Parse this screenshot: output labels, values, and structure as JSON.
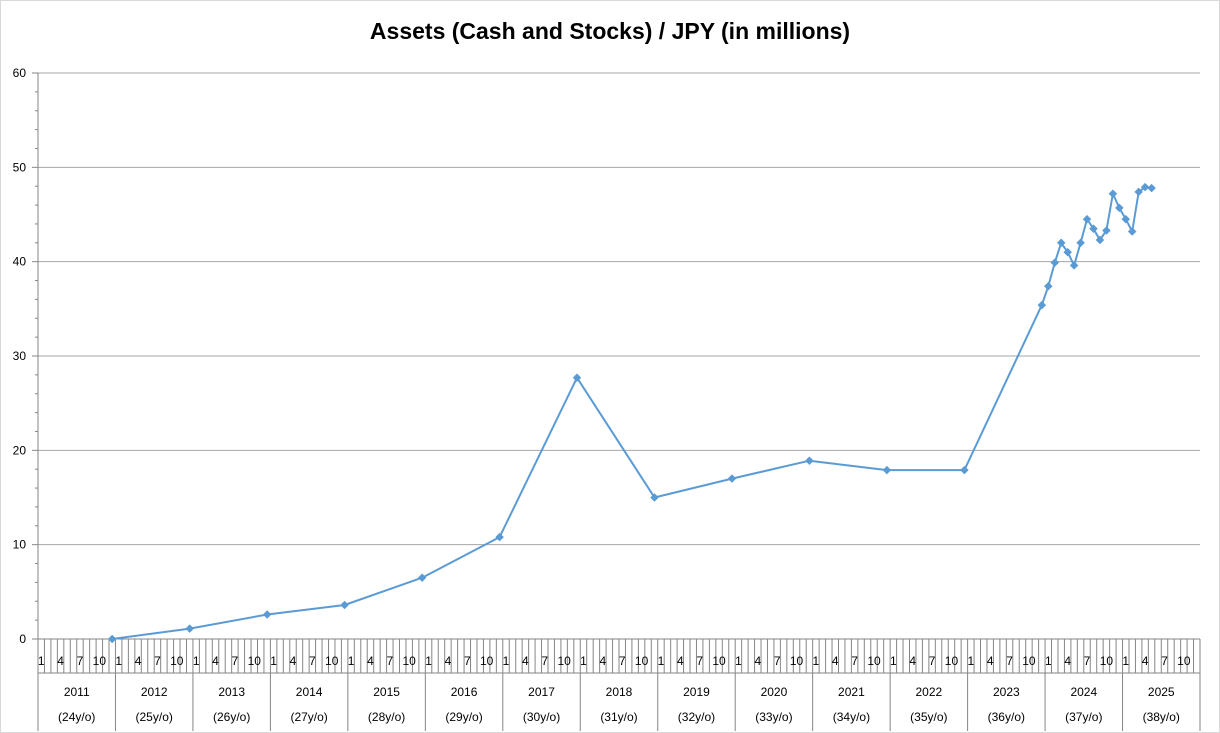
{
  "chart_data": {
    "type": "line",
    "title": "Assets (Cash and Stocks) / JPY (in millions)",
    "xlabel": "",
    "ylabel": "",
    "ylim": [
      0,
      60
    ],
    "y_ticks": [
      0,
      10,
      20,
      30,
      40,
      50,
      60
    ],
    "grid": true,
    "legend": "none",
    "x_axis": {
      "month_ticks": [
        "1",
        "4",
        "7",
        "10"
      ],
      "years": [
        {
          "year": "2011",
          "age": "(24y/o)"
        },
        {
          "year": "2012",
          "age": "(25y/o)"
        },
        {
          "year": "2013",
          "age": "(26y/o)"
        },
        {
          "year": "2014",
          "age": "(27y/o)"
        },
        {
          "year": "2015",
          "age": "(28y/o)"
        },
        {
          "year": "2016",
          "age": "(29y/o)"
        },
        {
          "year": "2017",
          "age": "(30y/o)"
        },
        {
          "year": "2018",
          "age": "(31y/o)"
        },
        {
          "year": "2019",
          "age": "(32y/o)"
        },
        {
          "year": "2020",
          "age": "(33y/o)"
        },
        {
          "year": "2021",
          "age": "(34y/o)"
        },
        {
          "year": "2022",
          "age": "(35y/o)"
        },
        {
          "year": "2023",
          "age": "(36y/o)"
        },
        {
          "year": "2024",
          "age": "(37y/o)"
        },
        {
          "year": "2025",
          "age": "(38y/o)"
        }
      ]
    },
    "series": [
      {
        "color": "#5b9bd5",
        "points": [
          {
            "x": "2011-12",
            "y": 0
          },
          {
            "x": "2012-12",
            "y": 1.1
          },
          {
            "x": "2013-12",
            "y": 2.6
          },
          {
            "x": "2014-12",
            "y": 3.6
          },
          {
            "x": "2015-12",
            "y": 6.5
          },
          {
            "x": "2016-12",
            "y": 10.8
          },
          {
            "x": "2017-12",
            "y": 27.7
          },
          {
            "x": "2018-12",
            "y": 15.0
          },
          {
            "x": "2019-12",
            "y": 17.0
          },
          {
            "x": "2020-12",
            "y": 18.9
          },
          {
            "x": "2021-12",
            "y": 17.9
          },
          {
            "x": "2022-12",
            "y": 17.9
          },
          {
            "x": "2023-12",
            "y": 35.4
          },
          {
            "x": "2024-01",
            "y": 37.4
          },
          {
            "x": "2024-02",
            "y": 39.9
          },
          {
            "x": "2024-03",
            "y": 42.0
          },
          {
            "x": "2024-04",
            "y": 41.0
          },
          {
            "x": "2024-05",
            "y": 39.6
          },
          {
            "x": "2024-06",
            "y": 42.0
          },
          {
            "x": "2024-07",
            "y": 44.5
          },
          {
            "x": "2024-08",
            "y": 43.5
          },
          {
            "x": "2024-09",
            "y": 42.3
          },
          {
            "x": "2024-10",
            "y": 43.3
          },
          {
            "x": "2024-11",
            "y": 47.2
          },
          {
            "x": "2024-12",
            "y": 45.7
          },
          {
            "x": "2025-01",
            "y": 44.5
          },
          {
            "x": "2025-02",
            "y": 43.2
          },
          {
            "x": "2025-03",
            "y": 47.4
          },
          {
            "x": "2025-04",
            "y": 47.9
          },
          {
            "x": "2025-05",
            "y": 47.8
          }
        ]
      }
    ]
  }
}
